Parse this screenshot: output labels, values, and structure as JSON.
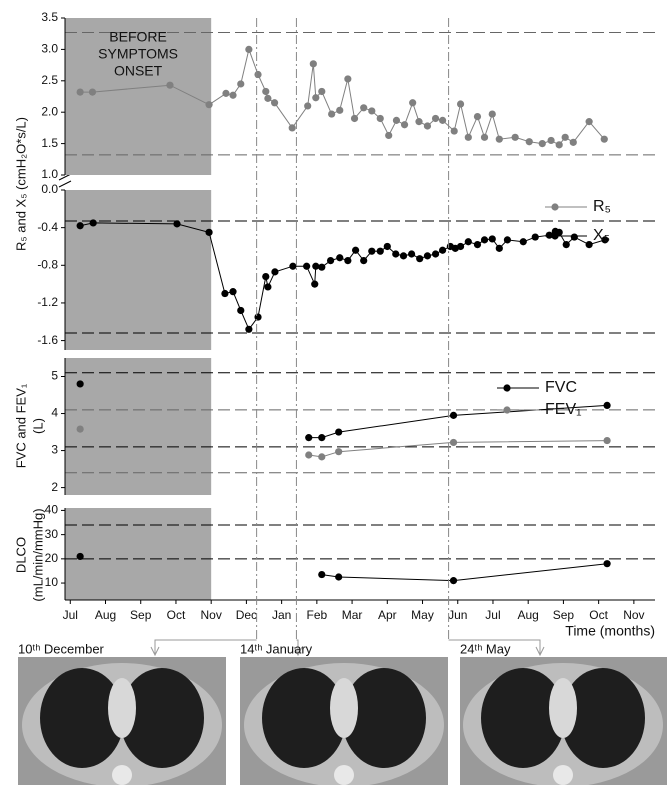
{
  "chart_data": [
    {
      "type": "line",
      "ylabel": [
        "R₅ and X₅ (cmH₂O*s/L)"
      ],
      "xlim": [
        -0.15,
        16.6
      ],
      "ylim": [
        1.0,
        3.5
      ],
      "yticks": [
        {
          "value": 1.0,
          "label": "1.0"
        },
        1.5,
        {
          "value": 2.0,
          "label": "2.0"
        },
        2.5,
        {
          "value": 3.0,
          "label": "3.0"
        },
        3.5
      ],
      "ref_lines": [
        {
          "value": 3.27,
          "color": "#666666"
        },
        {
          "value": 1.32,
          "color": "#666666"
        }
      ],
      "legend": true,
      "series": [
        {
          "name": "R₅",
          "color": "#808080",
          "x": [
            0.28,
            0.63,
            2.83,
            3.94,
            4.42,
            4.62,
            4.84,
            5.07,
            5.33,
            5.55,
            5.61,
            5.8,
            6.3,
            6.74,
            6.9,
            6.97,
            7.14,
            7.42,
            7.65,
            7.88,
            8.07,
            8.33,
            8.56,
            8.8,
            9.04,
            9.26,
            9.49,
            9.72,
            9.9,
            10.14,
            10.37,
            10.57,
            10.9,
            11.08,
            11.3,
            11.56,
            11.76,
            11.98,
            12.18,
            12.63,
            13.03,
            13.4,
            13.65,
            13.88,
            14.05,
            14.28,
            14.73,
            15.16
          ],
          "values": [
            2.32,
            2.32,
            2.43,
            2.12,
            2.3,
            2.27,
            2.45,
            3.0,
            2.6,
            2.33,
            2.22,
            2.15,
            1.75,
            2.1,
            2.77,
            2.23,
            2.33,
            1.97,
            2.03,
            2.53,
            1.9,
            2.07,
            2.02,
            1.9,
            1.63,
            1.87,
            1.8,
            2.15,
            1.85,
            1.78,
            1.9,
            1.87,
            1.7,
            2.13,
            1.6,
            1.93,
            1.6,
            1.97,
            1.57,
            1.6,
            1.53,
            1.5,
            1.55,
            1.48,
            1.6,
            1.52,
            1.85,
            1.57
          ]
        }
      ]
    },
    {
      "type": "line",
      "xlim": [
        -0.15,
        16.6
      ],
      "ylim": [
        -1.7,
        0.0
      ],
      "yticks": [
        {
          "value": 0.0,
          "label": "0.0"
        },
        -0.4,
        -0.8,
        -1.2,
        -1.6
      ],
      "ref_lines": [
        {
          "value": -0.33,
          "color": "#000000"
        },
        {
          "value": -1.52,
          "color": "#000000"
        }
      ],
      "legend": true,
      "series": [
        {
          "name": "X₅",
          "color": "#000000",
          "x": [
            0.28,
            0.65,
            3.03,
            3.94,
            4.39,
            4.62,
            4.84,
            5.07,
            5.33,
            5.55,
            5.61,
            5.81,
            6.32,
            6.71,
            6.94,
            6.97,
            7.14,
            7.39,
            7.65,
            7.88,
            8.1,
            8.33,
            8.56,
            8.8,
            9.0,
            9.24,
            9.46,
            9.69,
            9.92,
            10.14,
            10.37,
            10.57,
            10.79,
            10.93,
            11.08,
            11.3,
            11.56,
            11.76,
            11.98,
            12.18,
            12.41,
            12.86,
            13.2,
            13.6,
            13.77,
            13.88,
            14.08,
            14.31,
            14.73,
            15.18
          ],
          "values": [
            -0.38,
            -0.35,
            -0.36,
            -0.45,
            -1.1,
            -1.08,
            -1.28,
            -1.48,
            -1.35,
            -0.92,
            -1.03,
            -0.87,
            -0.81,
            -0.81,
            -1.0,
            -0.81,
            -0.82,
            -0.75,
            -0.72,
            -0.75,
            -0.64,
            -0.75,
            -0.65,
            -0.65,
            -0.6,
            -0.68,
            -0.7,
            -0.68,
            -0.73,
            -0.7,
            -0.68,
            -0.64,
            -0.6,
            -0.62,
            -0.6,
            -0.55,
            -0.58,
            -0.53,
            -0.52,
            -0.62,
            -0.53,
            -0.55,
            -0.5,
            -0.48,
            -0.44,
            -0.45,
            -0.58,
            -0.5,
            -0.58,
            -0.53
          ]
        }
      ]
    },
    {
      "type": "line",
      "ylabel": [
        "FVC and FEV₁",
        "(L)"
      ],
      "xlim": [
        -0.15,
        16.6
      ],
      "ylim": [
        1.8,
        5.5
      ],
      "yticks": [
        2,
        3,
        4,
        5
      ],
      "ref_lines": [
        {
          "value": 5.1,
          "color": "#000000"
        },
        {
          "value": 4.1,
          "color": "#666666"
        },
        {
          "value": 3.1,
          "color": "#000000"
        },
        {
          "value": 2.4,
          "color": "#666666"
        }
      ],
      "legend": true,
      "series": [
        {
          "name": "FVC",
          "color": "#000000",
          "x": [
            0.28,
            null,
            6.77,
            7.14,
            7.62,
            10.88,
            15.24
          ],
          "values": [
            4.8,
            null,
            3.35,
            3.35,
            3.5,
            3.95,
            4.22
          ]
        },
        {
          "name": "FEV₁",
          "color": "#808080",
          "x": [
            0.28,
            null,
            6.77,
            7.14,
            7.62,
            10.88,
            15.24
          ],
          "values": [
            3.58,
            null,
            2.88,
            2.83,
            2.97,
            3.22,
            3.27
          ]
        }
      ]
    },
    {
      "type": "line",
      "ylabel": [
        "DLCO",
        "(mL/min/mmHg)"
      ],
      "xlim": [
        -0.15,
        16.6
      ],
      "ylim": [
        3,
        41
      ],
      "yticks": [
        10,
        20,
        30,
        40
      ],
      "ref_lines": [
        {
          "value": 34,
          "color": "#000000"
        },
        {
          "value": 20,
          "color": "#000000"
        }
      ],
      "legend": false,
      "xlabel": "Time (months)",
      "xticks": [
        {
          "value": 0,
          "label": "Jul"
        },
        {
          "value": 1,
          "label": "Aug"
        },
        {
          "value": 2,
          "label": "Sep"
        },
        {
          "value": 3,
          "label": "Oct"
        },
        {
          "value": 4,
          "label": "Nov"
        },
        {
          "value": 5,
          "label": "Dec"
        },
        {
          "value": 6,
          "label": "Jan"
        },
        {
          "value": 7,
          "label": "Feb"
        },
        {
          "value": 8,
          "label": "Mar"
        },
        {
          "value": 9,
          "label": "Apr"
        },
        {
          "value": 10,
          "label": "May"
        },
        {
          "value": 11,
          "label": "Jun"
        },
        {
          "value": 12,
          "label": "Jul"
        },
        {
          "value": 13,
          "label": "Aug"
        },
        {
          "value": 14,
          "label": "Sep"
        },
        {
          "value": 15,
          "label": "Oct"
        },
        {
          "value": 16,
          "label": "Nov"
        }
      ],
      "series": [
        {
          "name": "DLCO",
          "color": "#000000",
          "x": [
            0.28,
            null,
            7.14,
            7.62,
            10.88,
            15.24
          ],
          "values": [
            21,
            null,
            13.5,
            12.5,
            11,
            18
          ]
        }
      ]
    }
  ],
  "shade": {
    "x": [
      -0.15,
      4.0
    ],
    "label": [
      "BEFORE",
      "SYMPTOMS",
      "ONSET"
    ]
  },
  "events": [
    {
      "x": 5.29,
      "label": "10ᵗʰ December"
    },
    {
      "x": 6.42,
      "label": "14ᵗʰ January"
    },
    {
      "x": 10.74,
      "label": "24ᵗʰ May"
    }
  ]
}
